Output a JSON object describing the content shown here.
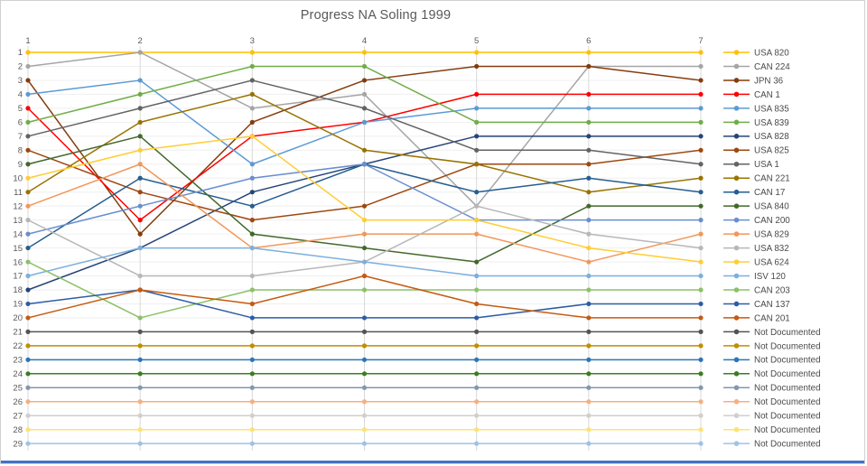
{
  "title": "Progress NA Soling 1999",
  "axes": {
    "x_ticks": [
      "1",
      "2",
      "3",
      "4",
      "5",
      "6",
      "7"
    ],
    "y_ticks": [
      "1",
      "2",
      "3",
      "4",
      "5",
      "6",
      "7",
      "8",
      "9",
      "10",
      "11",
      "12",
      "13",
      "14",
      "15",
      "16",
      "17",
      "18",
      "19",
      "20",
      "21",
      "22",
      "23",
      "24",
      "25",
      "26",
      "27",
      "28",
      "29"
    ]
  },
  "colors": {
    "tick_label": "#595959",
    "legend_label": "#4a4a4a",
    "grid_vertical": "#d9d9d9",
    "grid_horizontal": "#efefef",
    "bottom_strip": "#4472c4"
  },
  "chart_data": {
    "type": "line",
    "title": "Progress NA Soling 1999",
    "xlabel": "",
    "ylabel": "",
    "x": [
      1,
      2,
      3,
      4,
      5,
      6,
      7
    ],
    "x_axis_position": "top",
    "y_axis": {
      "min": 1,
      "max": 29,
      "inverted": true,
      "meaning": "position/rank per round"
    },
    "grid": true,
    "legend_position": "right",
    "series": [
      {
        "name": "USA 820",
        "color": "#FFC000",
        "values": [
          1,
          1,
          1,
          1,
          1,
          1,
          1
        ]
      },
      {
        "name": "CAN 224",
        "color": "#A5A5A5",
        "values": [
          2,
          1,
          5,
          4,
          12,
          2,
          2
        ]
      },
      {
        "name": "JPN 36",
        "color": "#843C0C",
        "values": [
          3,
          14,
          6,
          3,
          2,
          2,
          3
        ]
      },
      {
        "name": "CAN 1",
        "color": "#FF0000",
        "values": [
          5,
          13,
          7,
          6,
          4,
          4,
          4
        ]
      },
      {
        "name": "USA 835",
        "color": "#5B9BD5",
        "values": [
          4,
          3,
          9,
          6,
          5,
          5,
          5
        ]
      },
      {
        "name": "USA 839",
        "color": "#70AD47",
        "values": [
          6,
          4,
          2,
          2,
          6,
          6,
          6
        ]
      },
      {
        "name": "USA 828",
        "color": "#264478",
        "values": [
          18,
          15,
          11,
          9,
          7,
          7,
          7
        ]
      },
      {
        "name": "USA 825",
        "color": "#9E480E",
        "values": [
          8,
          11,
          13,
          12,
          9,
          9,
          8
        ]
      },
      {
        "name": "USA 1",
        "color": "#636363",
        "values": [
          7,
          5,
          3,
          5,
          8,
          8,
          9
        ]
      },
      {
        "name": "CAN 221",
        "color": "#997300",
        "values": [
          11,
          6,
          4,
          8,
          9,
          11,
          10
        ]
      },
      {
        "name": "CAN 17",
        "color": "#255E91",
        "values": [
          15,
          10,
          12,
          9,
          11,
          10,
          11
        ]
      },
      {
        "name": "USA 840",
        "color": "#43682B",
        "values": [
          9,
          7,
          14,
          15,
          16,
          12,
          12
        ]
      },
      {
        "name": "CAN 200",
        "color": "#698ED0",
        "values": [
          14,
          12,
          10,
          9,
          13,
          13,
          13
        ]
      },
      {
        "name": "USA 829",
        "color": "#F1975A",
        "values": [
          12,
          9,
          15,
          14,
          14,
          16,
          14
        ]
      },
      {
        "name": "USA 832",
        "color": "#B7B7B7",
        "values": [
          13,
          17,
          17,
          16,
          12,
          14,
          15
        ]
      },
      {
        "name": "USA 624",
        "color": "#FFCD33",
        "values": [
          10,
          8,
          7,
          13,
          13,
          15,
          16
        ]
      },
      {
        "name": "ISV 120",
        "color": "#7CAFDD",
        "values": [
          17,
          15,
          15,
          16,
          17,
          17,
          17
        ]
      },
      {
        "name": "CAN 203",
        "color": "#8CC168",
        "values": [
          16,
          20,
          18,
          18,
          18,
          18,
          18
        ]
      },
      {
        "name": "CAN 137",
        "color": "#2E5CA6",
        "values": [
          19,
          18,
          20,
          20,
          20,
          19,
          19
        ]
      },
      {
        "name": "CAN 201",
        "color": "#C55A11",
        "values": [
          20,
          18,
          19,
          17,
          19,
          20,
          20
        ]
      },
      {
        "name": "Not Documented",
        "color": "#545454",
        "values": [
          21,
          21,
          21,
          21,
          21,
          21,
          21
        ]
      },
      {
        "name": "Not Documented",
        "color": "#BF8F00",
        "values": [
          22,
          22,
          22,
          22,
          22,
          22,
          22
        ]
      },
      {
        "name": "Not Documented",
        "color": "#2E75B6",
        "values": [
          23,
          23,
          23,
          23,
          23,
          23,
          23
        ]
      },
      {
        "name": "Not Documented",
        "color": "#3B7D23",
        "values": [
          24,
          24,
          24,
          24,
          24,
          24,
          24
        ]
      },
      {
        "name": "Not Documented",
        "color": "#8496B0",
        "values": [
          25,
          25,
          25,
          25,
          25,
          25,
          25
        ]
      },
      {
        "name": "Not Documented",
        "color": "#F4B183",
        "values": [
          26,
          26,
          26,
          26,
          26,
          26,
          26
        ]
      },
      {
        "name": "Not Documented",
        "color": "#D0CECE",
        "values": [
          27,
          27,
          27,
          27,
          27,
          27,
          27
        ]
      },
      {
        "name": "Not Documented",
        "color": "#FFE173",
        "values": [
          28,
          28,
          28,
          28,
          28,
          28,
          28
        ]
      },
      {
        "name": "Not Documented",
        "color": "#9DC3E6",
        "values": [
          29,
          29,
          29,
          29,
          29,
          29,
          29
        ]
      }
    ]
  }
}
